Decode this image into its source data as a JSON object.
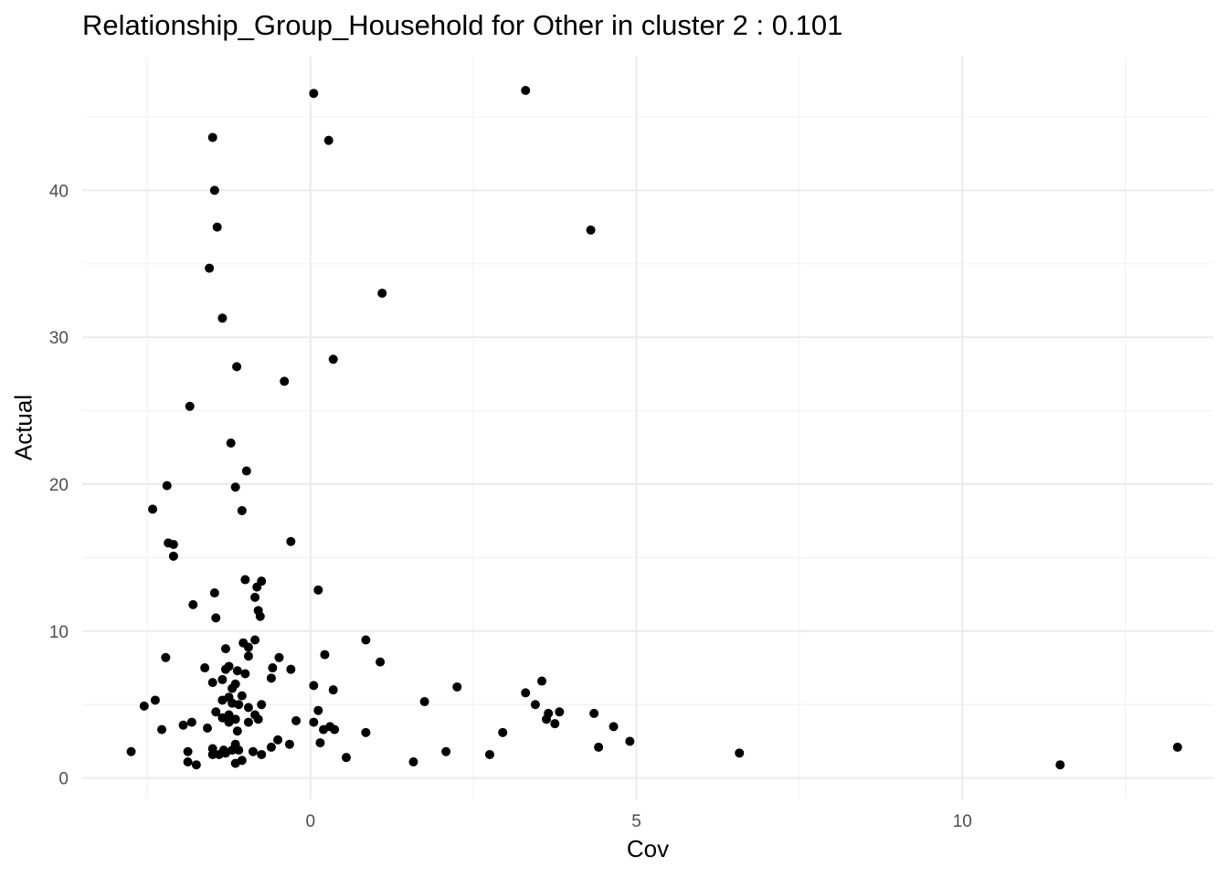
{
  "chart_data": {
    "type": "scatter",
    "title": "Relationship_Group_Household for Other in cluster 2 : 0.101",
    "xlabel": "Cov",
    "ylabel": "Actual",
    "xlim": [
      -3.5,
      13.85
    ],
    "ylim": [
      -1.45,
      49.1
    ],
    "x_ticks": [
      0,
      5,
      10
    ],
    "y_ticks": [
      0,
      10,
      20,
      30,
      40
    ],
    "grid": true,
    "point_color": "#000000",
    "points": [
      [
        0.05,
        46.6
      ],
      [
        3.3,
        46.8
      ],
      [
        0.28,
        43.4
      ],
      [
        -1.5,
        43.6
      ],
      [
        -1.47,
        40.0
      ],
      [
        4.3,
        37.3
      ],
      [
        -1.43,
        37.5
      ],
      [
        -1.55,
        34.7
      ],
      [
        1.1,
        33.0
      ],
      [
        -1.35,
        31.3
      ],
      [
        0.35,
        28.5
      ],
      [
        -1.13,
        28.0
      ],
      [
        -0.4,
        27.0
      ],
      [
        -1.85,
        25.3
      ],
      [
        -1.22,
        22.8
      ],
      [
        -0.98,
        20.9
      ],
      [
        -2.2,
        19.9
      ],
      [
        -1.15,
        19.8
      ],
      [
        -2.42,
        18.3
      ],
      [
        -1.05,
        18.2
      ],
      [
        -2.18,
        16.0
      ],
      [
        -2.1,
        15.9
      ],
      [
        -0.3,
        16.1
      ],
      [
        -2.1,
        15.1
      ],
      [
        -1.0,
        13.5
      ],
      [
        -0.75,
        13.4
      ],
      [
        -0.82,
        13.0
      ],
      [
        0.12,
        12.8
      ],
      [
        -1.47,
        12.6
      ],
      [
        -0.85,
        12.3
      ],
      [
        -1.8,
        11.8
      ],
      [
        -0.8,
        11.4
      ],
      [
        -1.45,
        10.9
      ],
      [
        -0.77,
        11.0
      ],
      [
        0.85,
        9.4
      ],
      [
        -0.85,
        9.4
      ],
      [
        -1.03,
        9.2
      ],
      [
        -0.95,
        8.9
      ],
      [
        -1.3,
        8.8
      ],
      [
        -0.95,
        8.3
      ],
      [
        -2.22,
        8.2
      ],
      [
        0.22,
        8.4
      ],
      [
        -0.48,
        8.2
      ],
      [
        1.07,
        7.9
      ],
      [
        -0.58,
        7.5
      ],
      [
        -1.25,
        7.6
      ],
      [
        -1.62,
        7.5
      ],
      [
        -1.3,
        7.4
      ],
      [
        -1.12,
        7.3
      ],
      [
        -0.3,
        7.4
      ],
      [
        -1.0,
        7.1
      ],
      [
        -0.6,
        6.8
      ],
      [
        -1.35,
        6.7
      ],
      [
        3.55,
        6.6
      ],
      [
        -1.5,
        6.5
      ],
      [
        -1.15,
        6.4
      ],
      [
        0.05,
        6.3
      ],
      [
        2.25,
        6.2
      ],
      [
        -1.2,
        6.1
      ],
      [
        0.35,
        6.0
      ],
      [
        3.3,
        5.8
      ],
      [
        -1.05,
        5.6
      ],
      [
        -1.25,
        5.5
      ],
      [
        -1.35,
        5.3
      ],
      [
        -2.38,
        5.3
      ],
      [
        -1.2,
        5.1
      ],
      [
        1.75,
        5.2
      ],
      [
        -1.1,
        5.0
      ],
      [
        3.45,
        5.0
      ],
      [
        -0.75,
        5.0
      ],
      [
        -2.55,
        4.9
      ],
      [
        -0.95,
        4.8
      ],
      [
        0.12,
        4.6
      ],
      [
        -1.45,
        4.5
      ],
      [
        3.65,
        4.4
      ],
      [
        -1.25,
        4.3
      ],
      [
        3.82,
        4.5
      ],
      [
        -0.85,
        4.3
      ],
      [
        4.35,
        4.4
      ],
      [
        -1.35,
        4.1
      ],
      [
        3.62,
        4.0
      ],
      [
        -1.15,
        4.0
      ],
      [
        -0.8,
        4.0
      ],
      [
        -0.22,
        3.9
      ],
      [
        -1.25,
        3.8
      ],
      [
        -0.95,
        3.8
      ],
      [
        0.05,
        3.8
      ],
      [
        -1.82,
        3.8
      ],
      [
        3.75,
        3.7
      ],
      [
        -1.95,
        3.6
      ],
      [
        4.65,
        3.5
      ],
      [
        0.3,
        3.5
      ],
      [
        -1.58,
        3.4
      ],
      [
        0.37,
        3.3
      ],
      [
        -2.28,
        3.3
      ],
      [
        0.2,
        3.3
      ],
      [
        -1.12,
        3.2
      ],
      [
        0.85,
        3.1
      ],
      [
        2.95,
        3.1
      ],
      [
        -0.5,
        2.6
      ],
      [
        0.15,
        2.4
      ],
      [
        4.9,
        2.5
      ],
      [
        -1.15,
        2.3
      ],
      [
        -0.32,
        2.3
      ],
      [
        4.42,
        2.1
      ],
      [
        13.3,
        2.1
      ],
      [
        -0.6,
        2.1
      ],
      [
        -1.5,
        2.0
      ],
      [
        -1.33,
        1.9
      ],
      [
        -1.2,
        1.9
      ],
      [
        -2.75,
        1.8
      ],
      [
        -1.1,
        1.9
      ],
      [
        -1.88,
        1.8
      ],
      [
        2.08,
        1.8
      ],
      [
        -0.88,
        1.8
      ],
      [
        -1.3,
        1.7
      ],
      [
        -1.5,
        1.6
      ],
      [
        -0.75,
        1.6
      ],
      [
        2.75,
        1.6
      ],
      [
        6.58,
        1.7
      ],
      [
        -1.4,
        1.6
      ],
      [
        0.55,
        1.4
      ],
      [
        -1.05,
        1.2
      ],
      [
        1.58,
        1.1
      ],
      [
        -1.88,
        1.1
      ],
      [
        -1.75,
        0.9
      ],
      [
        -1.15,
        1.0
      ],
      [
        11.5,
        0.9
      ]
    ]
  }
}
